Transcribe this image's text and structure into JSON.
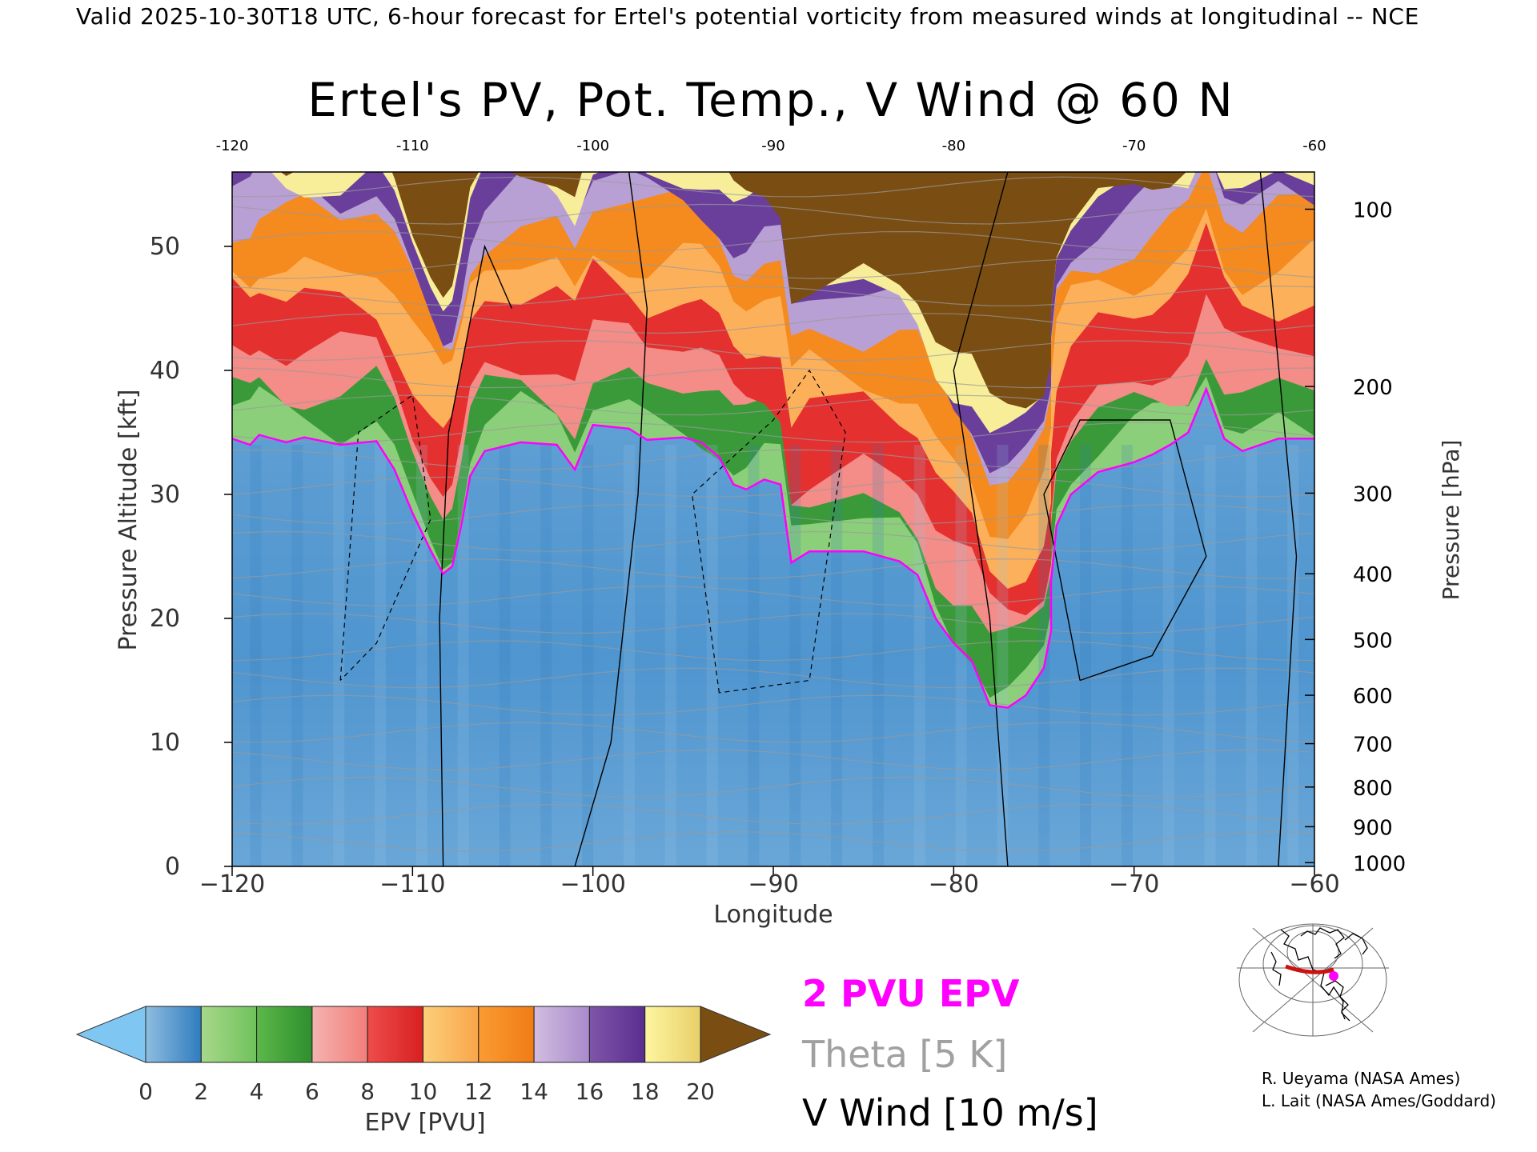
{
  "header": "Valid 2025-10-30T18 UTC, 6-hour forecast for Ertel's potential vorticity from measured winds at longitudinal -- NCE",
  "title": "Ertel's PV, Pot. Temp., V Wind @ 60 N",
  "chart_data": {
    "type": "heatmap",
    "title": "Ertel's PV, Pot. Temp., V Wind @ 60 N",
    "xlabel": "Longitude",
    "ylabel": "Pressure Altitude [kft]",
    "ylabel_right": "Pressure [hPa]",
    "xlim": [
      -120,
      -60
    ],
    "ylim": [
      0,
      56
    ],
    "x_ticks": [
      "-120",
      "-110",
      "-100",
      "-90",
      "-80",
      "-70",
      "-60"
    ],
    "top_x_ticks": [
      "-120",
      "-110",
      "-100",
      "-90",
      "-80",
      "-70",
      "-60"
    ],
    "y_ticks": [
      "0",
      "10",
      "20",
      "30",
      "40",
      "50"
    ],
    "pressure_ticks": [
      {
        "label": "100",
        "kft": 53.0
      },
      {
        "label": "200",
        "kft": 38.7
      },
      {
        "label": "300",
        "kft": 30.1
      },
      {
        "label": "400",
        "kft": 23.6
      },
      {
        "label": "500",
        "kft": 18.3
      },
      {
        "label": "600",
        "kft": 13.8
      },
      {
        "label": "700",
        "kft": 9.9
      },
      {
        "label": "800",
        "kft": 6.4
      },
      {
        "label": "900",
        "kft": 3.2
      },
      {
        "label": "1000",
        "kft": 0.3
      }
    ],
    "epv_colorbar": {
      "label": "EPV [PVU]",
      "tick_labels": [
        "0",
        "2",
        "4",
        "6",
        "8",
        "10",
        "12",
        "14",
        "16",
        "18",
        "20"
      ],
      "ticks": [
        0,
        2,
        4,
        6,
        8,
        10,
        12,
        14,
        16,
        18,
        20
      ],
      "under_color": "#7fc6f2",
      "over_color": "#7a4d12",
      "bands": [
        {
          "from": 0,
          "to": 2,
          "colors": [
            "#8fbde0",
            "#2f7cbf"
          ]
        },
        {
          "from": 2,
          "to": 4,
          "colors": [
            "#a8d88a",
            "#6fc25c"
          ]
        },
        {
          "from": 4,
          "to": 6,
          "colors": [
            "#5cb84a",
            "#2e8f2e"
          ]
        },
        {
          "from": 6,
          "to": 8,
          "colors": [
            "#f4b3b0",
            "#f27e7a"
          ]
        },
        {
          "from": 8,
          "to": 10,
          "colors": [
            "#ee4c4c",
            "#d82020"
          ]
        },
        {
          "from": 10,
          "to": 12,
          "colors": [
            "#fbd07a",
            "#f9a54a"
          ]
        },
        {
          "from": 12,
          "to": 14,
          "colors": [
            "#fb9b33",
            "#f07c14"
          ]
        },
        {
          "from": 14,
          "to": 16,
          "colors": [
            "#d2bde0",
            "#a88acb"
          ]
        },
        {
          "from": 16,
          "to": 18,
          "colors": [
            "#7e55a8",
            "#5a2e90"
          ]
        },
        {
          "from": 18,
          "to": 20,
          "colors": [
            "#fdf6a0",
            "#e9cf6a"
          ]
        }
      ]
    },
    "legend": [
      {
        "label": "2 PVU EPV",
        "color": "#ff00ff"
      },
      {
        "label": "Theta [5 K]",
        "color": "#a0a0a0"
      },
      {
        "label": "V Wind [10 m/s]",
        "color": "#000000"
      }
    ],
    "tropopause_2pvu_kft": [
      [
        -120,
        34.5
      ],
      [
        -119,
        34.0
      ],
      [
        -118.5,
        34.8
      ],
      [
        -117,
        34.2
      ],
      [
        -116,
        34.6
      ],
      [
        -114,
        34.0
      ],
      [
        -112,
        34.3
      ],
      [
        -111,
        32.0
      ],
      [
        -110,
        28.5
      ],
      [
        -109,
        25.5
      ],
      [
        -108.3,
        23.6
      ],
      [
        -107.8,
        24.2
      ],
      [
        -107.3,
        27.5
      ],
      [
        -106.8,
        31.5
      ],
      [
        -106,
        33.5
      ],
      [
        -104,
        34.2
      ],
      [
        -102,
        34.0
      ],
      [
        -101,
        32.0
      ],
      [
        -100,
        35.6
      ],
      [
        -98,
        35.3
      ],
      [
        -97,
        34.4
      ],
      [
        -95,
        34.6
      ],
      [
        -94,
        34.2
      ],
      [
        -93,
        33.0
      ],
      [
        -92.2,
        30.8
      ],
      [
        -91.5,
        30.4
      ],
      [
        -90.5,
        31.2
      ],
      [
        -89.6,
        30.8
      ],
      [
        -89,
        24.5
      ],
      [
        -88,
        25.4
      ],
      [
        -85,
        25.4
      ],
      [
        -83,
        24.6
      ],
      [
        -82,
        23.5
      ],
      [
        -81,
        20.0
      ],
      [
        -80,
        18.0
      ],
      [
        -79,
        16.6
      ],
      [
        -78,
        13.0
      ],
      [
        -77,
        12.8
      ],
      [
        -76,
        13.8
      ],
      [
        -75,
        16.0
      ],
      [
        -74.6,
        19.0
      ],
      [
        -74.6,
        23.0
      ],
      [
        -74.3,
        27.5
      ],
      [
        -73.5,
        30.0
      ],
      [
        -72,
        31.8
      ],
      [
        -70,
        32.6
      ],
      [
        -69,
        33.2
      ],
      [
        -68,
        34.0
      ],
      [
        -67,
        35.0
      ],
      [
        -66,
        38.5
      ],
      [
        -65,
        34.5
      ],
      [
        -64,
        33.5
      ],
      [
        -62,
        34.5
      ],
      [
        -60,
        34.5
      ]
    ]
  },
  "credits": {
    "line1": "R. Ueyama (NASA Ames)",
    "line2": "L. Lait (NASA Ames/Goddard)"
  },
  "inset_map": {
    "highlight_color": "#cc1111",
    "marker_color": "#ff00ff"
  }
}
